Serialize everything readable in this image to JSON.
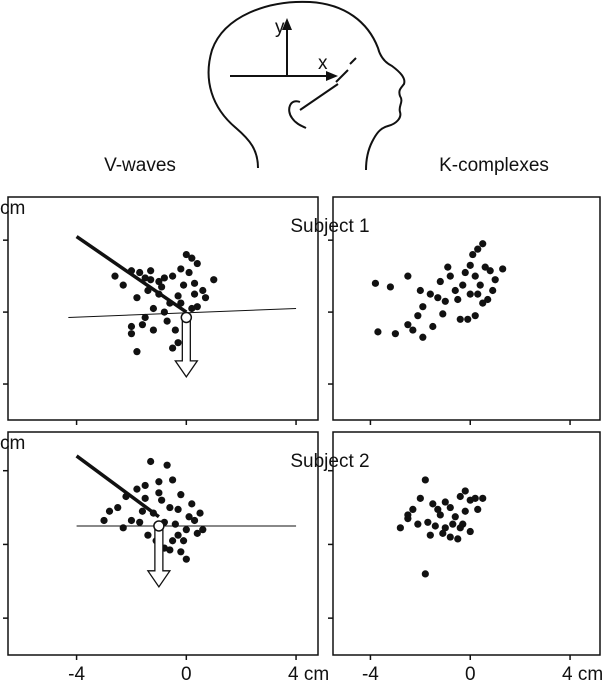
{
  "diagram": {
    "y_label": "y",
    "x_label": "x"
  },
  "column_titles": [
    "V-waves",
    "K-complexes"
  ],
  "chart_data": [
    {
      "type": "scatter",
      "title": "Subject 1",
      "ylabel": "cm",
      "xlim": [
        -6.5,
        4.8
      ],
      "ylim": [
        -6,
        6.4
      ],
      "xticks": [
        -4,
        0,
        4
      ],
      "yticks": [
        -4,
        0,
        4
      ],
      "xtick_labels": false,
      "ytick_labels": true,
      "color": "#111111",
      "x": [
        -2,
        -1.7,
        -1.5,
        -1.3,
        -1,
        -0.8,
        -0.5,
        -0.2,
        0,
        0.2,
        0.4,
        0.1,
        -0.1,
        0.3,
        0.6,
        1,
        0.7,
        0.4,
        -0.3,
        -0.6,
        -1,
        -1.4,
        -1.8,
        -2.3,
        -2.6,
        -1.2,
        -0.8,
        -1.5,
        -2,
        -2,
        -1.6,
        -1.2,
        -0.7,
        -0.4,
        -0.3,
        -0.5,
        -1.8,
        -0.2,
        0.3,
        -0.9,
        -1.3,
        0.2
      ],
      "y": [
        2.3,
        2.2,
        1.9,
        1.8,
        1.7,
        1.9,
        2,
        2.4,
        3.2,
        3,
        2.7,
        2.2,
        1.5,
        1.6,
        1.2,
        1.8,
        0.8,
        0.3,
        0.9,
        0.5,
        1,
        1.2,
        0.8,
        1.5,
        2,
        0.2,
        0,
        -0.3,
        -0.8,
        -1.2,
        -0.7,
        -1,
        -0.5,
        -1,
        -1.7,
        -2,
        -2.2,
        0.5,
        1,
        1.4,
        2.3,
        0.2
      ],
      "lines": [
        {
          "x": [
            -4,
            0
          ],
          "y": [
            4.2,
            0
          ],
          "width": 3.5
        },
        {
          "x": [
            -4.3,
            4
          ],
          "y": [
            -0.3,
            0.2
          ],
          "width": 1
        }
      ],
      "arrow": {
        "x": [
          0,
          0
        ],
        "y": [
          -0.3,
          -3.6
        ]
      }
    },
    {
      "type": "scatter",
      "xlim": [
        -5.5,
        5.2
      ],
      "ylim": [
        -6,
        6.4
      ],
      "xticks": [
        -4,
        0,
        4
      ],
      "yticks": [
        -4,
        0,
        4
      ],
      "xtick_labels": false,
      "ytick_labels": false,
      "color": "#111111",
      "x": [
        -3.8,
        -3.2,
        -2.5,
        -3.7,
        -3,
        -2.5,
        -2.1,
        -1.9,
        -2,
        -1.6,
        -1.3,
        -1.2,
        -1,
        -0.8,
        -0.5,
        -0.3,
        -0.2,
        0,
        0.1,
        0.3,
        0.5,
        0.2,
        0.4,
        0.6,
        0.8,
        1,
        0.7,
        0.5,
        0.2,
        -0.1,
        -0.4,
        -1.5,
        -1.9,
        -1.1,
        0.3,
        -0.6,
        -2.3,
        0.9,
        1.3,
        -0.9,
        0
      ],
      "y": [
        1.6,
        1.4,
        2,
        -1.1,
        -1.2,
        -0.7,
        -0.2,
        0.3,
        1.2,
        1,
        0.8,
        1.7,
        0.6,
        2,
        0.7,
        1.5,
        2.2,
        2.6,
        3.2,
        3.5,
        3.8,
        2,
        1.5,
        2.5,
        2.3,
        1.8,
        0.7,
        0.5,
        -0.2,
        -0.4,
        -0.4,
        -0.8,
        -1.4,
        -0.1,
        1,
        1.2,
        -1,
        1.2,
        2.4,
        2.5,
        1
      ]
    },
    {
      "type": "scatter",
      "title": "Subject 2",
      "ylabel": "cm",
      "xlim": [
        -6.5,
        4.8
      ],
      "ylim": [
        -6,
        6.1
      ],
      "xticks": [
        -4,
        0,
        {
          "value": 4,
          "label": "4 cm"
        }
      ],
      "yticks": [
        -4,
        0,
        4
      ],
      "xtick_labels": true,
      "ytick_labels": true,
      "color": "#111111",
      "x": [
        -2,
        -2.5,
        -2.8,
        -3,
        -2.2,
        -1.8,
        -1.5,
        -1.3,
        -1,
        -0.7,
        -0.5,
        -0.9,
        -0.6,
        -0.2,
        0.2,
        0.5,
        0.3,
        0,
        -0.3,
        -0.5,
        -0.8,
        -0.2,
        0,
        -1.4,
        -1.6,
        -1.2,
        -0.8,
        -0.4,
        0.1,
        -1.5,
        -2.3,
        -1.1,
        -0.1,
        0.4,
        -0.3,
        -1.7,
        -1,
        0.6,
        -0.6
      ],
      "y": [
        1.3,
        2,
        1.8,
        1.3,
        2.6,
        3,
        3.2,
        4.5,
        2.8,
        4.3,
        3.5,
        2.4,
        2,
        2.7,
        2.2,
        1.7,
        1.3,
        0.8,
        0.5,
        0.2,
        -0.2,
        -0.4,
        -0.8,
        0.5,
        1.8,
        1.7,
        1.2,
        1.1,
        1.5,
        2.5,
        0.9,
        0.2,
        0.2,
        0.6,
        1.9,
        1.2,
        3.4,
        0.8,
        -0.3
      ],
      "lines": [
        {
          "x": [
            -4,
            -1
          ],
          "y": [
            4.8,
            1.5
          ],
          "width": 3.5
        },
        {
          "x": [
            -4,
            4
          ],
          "y": [
            1,
            1
          ],
          "width": 1
        }
      ],
      "arrow": {
        "x": [
          -1,
          -1
        ],
        "y": [
          1,
          -2.3
        ]
      }
    },
    {
      "type": "scatter",
      "xlim": [
        -5.5,
        5.2
      ],
      "ylim": [
        -6,
        6.1
      ],
      "xticks": [
        -4,
        0,
        {
          "value": 4,
          "label": "4 cm"
        }
      ],
      "yticks": [
        -4,
        0,
        4
      ],
      "xtick_labels": true,
      "ytick_labels": false,
      "color": "#111111",
      "x": [
        -2.8,
        -2.5,
        -2.3,
        -2,
        -1.8,
        -1.5,
        -1.7,
        -1.4,
        -1.2,
        -1,
        -0.8,
        -0.6,
        -0.4,
        -0.2,
        0,
        0.2,
        0.5,
        -0.3,
        0,
        -0.5,
        -0.8,
        -1.1,
        -1.3,
        -1.6,
        -1.8,
        -2.1,
        -0.7,
        -0.2,
        -1,
        -2.5,
        0.3,
        -0.4
      ],
      "y": [
        0.9,
        1.4,
        1.9,
        2.5,
        3.5,
        2.2,
        1.2,
        1,
        1.6,
        0.9,
        2,
        1.5,
        2.6,
        2.9,
        2.4,
        2.5,
        2.5,
        1.1,
        0.7,
        0.3,
        0.4,
        0.6,
        1.9,
        0.5,
        -1.6,
        1.1,
        1.1,
        1.8,
        2.3,
        1.6,
        1.9,
        0.9
      ]
    }
  ]
}
